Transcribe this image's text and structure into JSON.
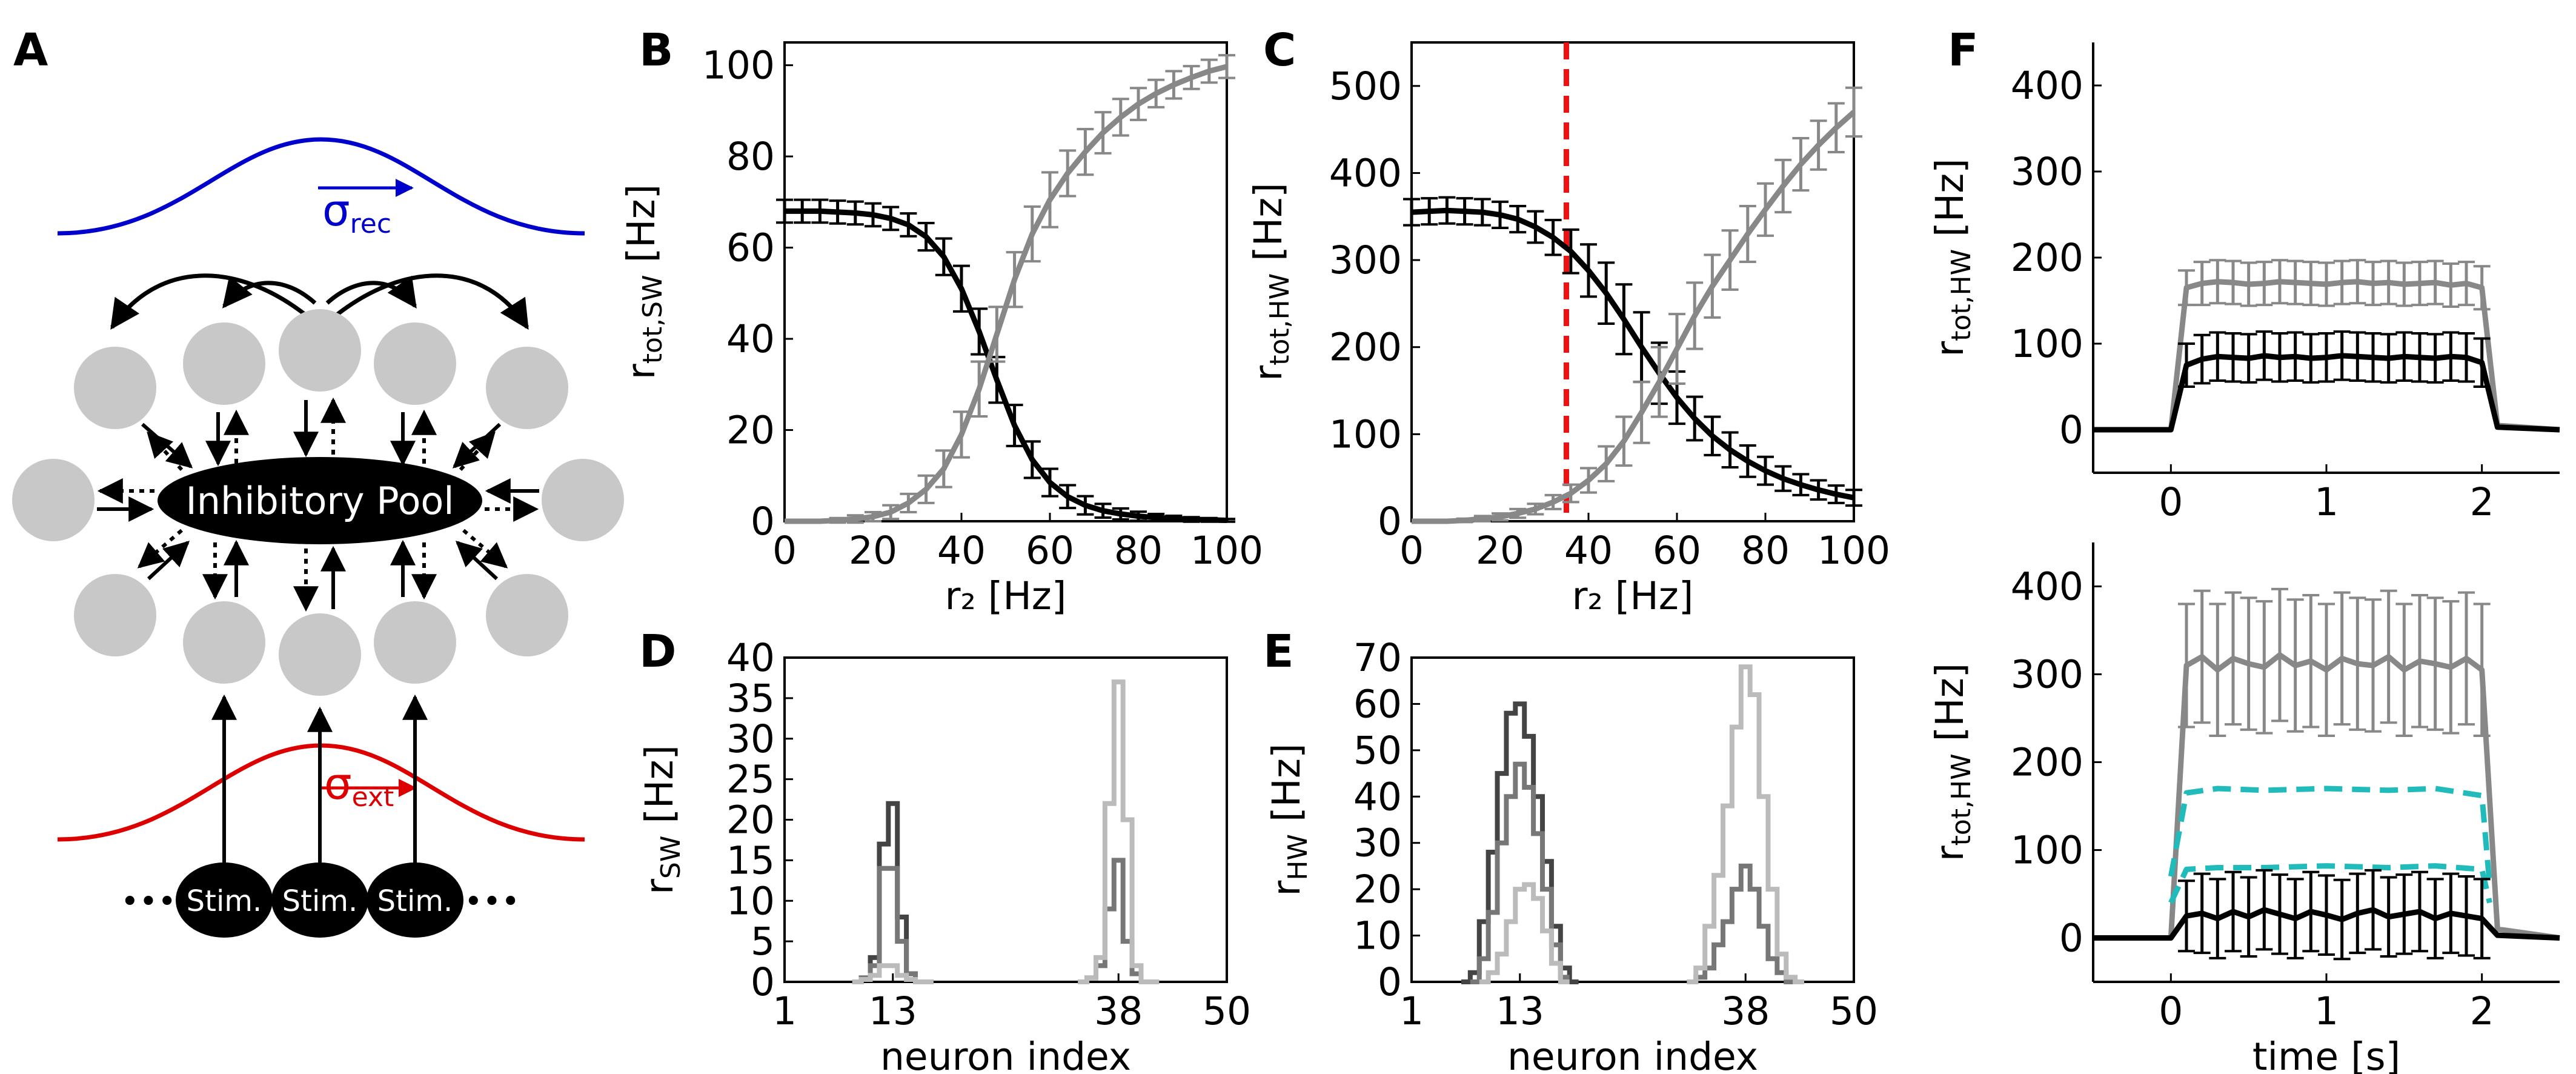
{
  "panel_labels": {
    "A": "A",
    "B": "B",
    "C": "C",
    "D": "D",
    "E": "E",
    "F": "F"
  },
  "colors": {
    "grey_curve": "#888888",
    "black_curve": "#000000",
    "red_dashed": "#ee1111",
    "cyan_dashed": "#22bbbb",
    "hist_dark": "#444444",
    "hist_mid": "#777777",
    "hist_light": "#bbbbbb",
    "recurrent_kernel": "#0000cc",
    "external_kernel": "#dd0000",
    "neuron_fill": "#c8c8c8"
  },
  "diagram": {
    "pool_label": "Inhibitory Pool",
    "stim_labels": [
      "Stim.",
      "Stim.",
      "Stim."
    ],
    "sigma_rec_base": "σ",
    "sigma_rec_sub": "rec",
    "sigma_ext_base": "σ",
    "sigma_ext_sub": "ext",
    "ellipsis_left": "•••",
    "ellipsis_right": "•••"
  },
  "chart_data": [
    {
      "id": "B",
      "type": "line",
      "xlabel": "r₂ [Hz]",
      "ylabel_base": "r",
      "ylabel_sub": "tot,SW",
      "ylabel_unit": " [Hz]",
      "xlim": [
        0,
        100
      ],
      "ylim": [
        0,
        105
      ],
      "xticks": [
        0,
        20,
        40,
        60,
        80,
        100
      ],
      "yticks": [
        0,
        20,
        40,
        60,
        80,
        100
      ],
      "series": [
        {
          "color": "black",
          "x": [
            0,
            4,
            8,
            12,
            16,
            20,
            24,
            28,
            32,
            36,
            40,
            44,
            48,
            52,
            56,
            60,
            64,
            68,
            72,
            76,
            80,
            84,
            88,
            92,
            96,
            100
          ],
          "y": [
            68,
            68,
            68,
            67.8,
            67.6,
            67.2,
            66.4,
            65,
            62.4,
            58,
            51,
            41.6,
            31,
            21,
            13.5,
            8.5,
            5.4,
            3.5,
            2.3,
            1.6,
            1.1,
            0.8,
            0.6,
            0.4,
            0.3,
            0.2
          ],
          "err": [
            2.5,
            2.5,
            2.5,
            2.5,
            2.5,
            2.5,
            2.5,
            2.5,
            3,
            4,
            5,
            5,
            5,
            4.5,
            4,
            3,
            2.5,
            2,
            1.5,
            1.2,
            1,
            0.8,
            0.6,
            0.5,
            0.4,
            0.3
          ]
        },
        {
          "color": "grey",
          "x": [
            0,
            4,
            8,
            12,
            16,
            20,
            24,
            28,
            32,
            36,
            40,
            44,
            48,
            52,
            56,
            60,
            64,
            68,
            72,
            76,
            80,
            84,
            88,
            92,
            96,
            100
          ],
          "y": [
            0,
            0,
            0,
            0.2,
            0.5,
            1,
            2,
            4,
            7,
            11.5,
            19,
            29,
            41,
            53,
            63,
            70.5,
            76.3,
            81,
            85.2,
            88.6,
            91.5,
            93.8,
            95.7,
            97.3,
            98.7,
            99.7
          ],
          "err": [
            0,
            0,
            0,
            0.5,
            0.8,
            1,
            1.5,
            2,
            3,
            4,
            5,
            6,
            6,
            6,
            6,
            6,
            5,
            5,
            4.5,
            4,
            3.5,
            3,
            3,
            2.5,
            2.5,
            2.5
          ]
        }
      ]
    },
    {
      "id": "C",
      "type": "line",
      "xlabel": "r₂ [Hz]",
      "ylabel_base": "r",
      "ylabel_sub": "tot,HW",
      "ylabel_unit": " [Hz]",
      "xlim": [
        0,
        100
      ],
      "ylim": [
        0,
        550
      ],
      "xticks": [
        0,
        20,
        40,
        60,
        80,
        100
      ],
      "yticks": [
        0,
        100,
        200,
        300,
        400,
        500
      ],
      "vline": 35,
      "series": [
        {
          "color": "black",
          "x": [
            0,
            4,
            8,
            12,
            16,
            20,
            24,
            28,
            32,
            36,
            40,
            44,
            48,
            52,
            56,
            60,
            64,
            68,
            72,
            76,
            80,
            84,
            88,
            92,
            96,
            100
          ],
          "y": [
            355,
            356,
            357,
            356,
            355,
            352,
            347,
            338,
            326,
            310,
            288,
            262,
            232,
            200,
            170,
            142,
            118,
            98,
            82,
            69,
            58,
            49,
            42,
            36,
            31,
            27
          ],
          "err": [
            15,
            15,
            15,
            15,
            15,
            15,
            15,
            18,
            20,
            25,
            30,
            35,
            40,
            40,
            35,
            30,
            25,
            22,
            20,
            18,
            16,
            14,
            12,
            11,
            10,
            9
          ]
        },
        {
          "color": "grey",
          "x": [
            0,
            4,
            8,
            12,
            16,
            20,
            24,
            28,
            32,
            36,
            40,
            44,
            48,
            52,
            56,
            60,
            64,
            68,
            72,
            76,
            80,
            84,
            88,
            92,
            96,
            100
          ],
          "y": [
            0,
            0,
            0,
            1,
            3,
            5,
            9,
            14,
            22,
            32,
            47,
            66,
            92,
            125,
            160,
            198,
            236,
            270,
            300,
            330,
            358,
            385,
            410,
            432,
            452,
            470
          ],
          "err": [
            0,
            0,
            0,
            2,
            3,
            4,
            5,
            6,
            8,
            10,
            14,
            20,
            28,
            35,
            40,
            40,
            38,
            36,
            34,
            32,
            30,
            30,
            30,
            28,
            28,
            28
          ]
        }
      ]
    },
    {
      "id": "D",
      "type": "line",
      "xlabel": "neuron index",
      "ylabel_base": "r",
      "ylabel_sub": "SW",
      "ylabel_unit": " [Hz]",
      "xlim": [
        1,
        50
      ],
      "ylim": [
        0,
        40
      ],
      "xticks": [
        1,
        13,
        38,
        50
      ],
      "yticks": [
        0,
        5,
        10,
        15,
        20,
        25,
        30,
        35,
        40
      ],
      "series": [
        {
          "color": "dark",
          "x": [
            9,
            10,
            11,
            12,
            13,
            14,
            15,
            16,
            17
          ],
          "y": [
            0,
            0.5,
            3,
            17,
            22,
            8,
            1,
            0,
            0
          ]
        },
        {
          "color": "mid",
          "x": [
            9,
            10,
            11,
            12,
            13,
            14,
            15,
            16,
            17
          ],
          "y": [
            0,
            0.5,
            2,
            14,
            14,
            5,
            1,
            0,
            0
          ],
          "x2": [
            34,
            35,
            36,
            37,
            38,
            39,
            40,
            41,
            42
          ],
          "y2": [
            0,
            0.5,
            2,
            9,
            15,
            5,
            1,
            0,
            0
          ]
        },
        {
          "color": "light",
          "x": [
            9,
            10,
            11,
            12,
            13,
            14,
            15,
            16,
            17
          ],
          "y": [
            0,
            0.3,
            0.8,
            2,
            2,
            0.8,
            0.3,
            0,
            0
          ],
          "x2": [
            34,
            35,
            36,
            37,
            38,
            39,
            40,
            41,
            42
          ],
          "y2": [
            0,
            0.5,
            3,
            22,
            37,
            20,
            2,
            0,
            0
          ]
        }
      ]
    },
    {
      "id": "E",
      "type": "line",
      "xlabel": "neuron index",
      "ylabel_base": "r",
      "ylabel_sub": "HW",
      "ylabel_unit": " [Hz]",
      "xlim": [
        1,
        50
      ],
      "ylim": [
        0,
        70
      ],
      "xticks": [
        1,
        13,
        38,
        50
      ],
      "yticks": [
        0,
        10,
        20,
        30,
        40,
        50,
        60,
        70
      ],
      "series": [
        {
          "color": "dark",
          "x": [
            7,
            8,
            9,
            10,
            11,
            12,
            13,
            14,
            15,
            16,
            17,
            18,
            19
          ],
          "y": [
            0,
            2,
            13,
            28,
            45,
            58,
            60,
            53,
            40,
            26,
            12,
            3,
            0
          ]
        },
        {
          "color": "mid",
          "x": [
            8,
            9,
            10,
            11,
            12,
            13,
            14,
            15,
            16,
            17,
            18
          ],
          "y": [
            0,
            5,
            15,
            30,
            40,
            47,
            42,
            32,
            20,
            8,
            1
          ],
          "x2": [
            32,
            33,
            34,
            35,
            36,
            37,
            38,
            39,
            40,
            41,
            42,
            43,
            44
          ],
          "y2": [
            0,
            1,
            3,
            8,
            13,
            20,
            25,
            20,
            12,
            5,
            2,
            0,
            0
          ]
        },
        {
          "color": "light",
          "x": [
            9,
            10,
            11,
            12,
            13,
            14,
            15,
            16,
            17,
            18
          ],
          "y": [
            0,
            2,
            6,
            13,
            20,
            21,
            18,
            11,
            4,
            0
          ],
          "x2": [
            32,
            33,
            34,
            35,
            36,
            37,
            38,
            39,
            40,
            41,
            42,
            43,
            44
          ],
          "y2": [
            0,
            3,
            12,
            23,
            38,
            55,
            68,
            62,
            40,
            20,
            6,
            1,
            0
          ]
        }
      ]
    },
    {
      "id": "F1",
      "type": "line",
      "xlabel": "",
      "ylabel_base": "r",
      "ylabel_sub": "tot,HW",
      "ylabel_unit": " [Hz]",
      "xlim": [
        -0.5,
        2.5
      ],
      "ylim": [
        -50,
        450
      ],
      "xticks": [
        0,
        1,
        2
      ],
      "yticks": [
        0,
        100,
        200,
        300,
        400
      ],
      "series": [
        {
          "color": "grey",
          "x": [
            -0.5,
            0,
            0.1,
            0.2,
            0.3,
            0.4,
            0.5,
            0.6,
            0.7,
            0.8,
            0.9,
            1.0,
            1.1,
            1.2,
            1.3,
            1.4,
            1.5,
            1.6,
            1.7,
            1.8,
            1.9,
            2.0,
            2.1,
            2.5
          ],
          "y": [
            0,
            0,
            165,
            170,
            172,
            171,
            169,
            170,
            172,
            171,
            170,
            169,
            171,
            172,
            170,
            171,
            169,
            170,
            171,
            168,
            170,
            165,
            5,
            0
          ],
          "err": [
            0,
            0,
            20,
            25,
            25,
            25,
            25,
            25,
            25,
            25,
            25,
            25,
            25,
            25,
            25,
            25,
            25,
            25,
            25,
            25,
            25,
            25,
            0,
            0
          ]
        },
        {
          "color": "black",
          "x": [
            -0.5,
            0,
            0.1,
            0.2,
            0.3,
            0.4,
            0.5,
            0.6,
            0.7,
            0.8,
            0.9,
            1.0,
            1.1,
            1.2,
            1.3,
            1.4,
            1.5,
            1.6,
            1.7,
            1.8,
            1.9,
            2.0,
            2.1,
            2.5
          ],
          "y": [
            0,
            0,
            75,
            82,
            85,
            84,
            83,
            86,
            84,
            85,
            83,
            84,
            86,
            85,
            84,
            83,
            85,
            84,
            83,
            85,
            84,
            78,
            3,
            0
          ],
          "err": [
            0,
            0,
            25,
            28,
            28,
            28,
            28,
            28,
            28,
            28,
            28,
            28,
            28,
            28,
            28,
            28,
            28,
            28,
            28,
            28,
            28,
            28,
            0,
            0
          ]
        }
      ]
    },
    {
      "id": "F2",
      "type": "line",
      "xlabel": "time [s]",
      "ylabel_base": "r",
      "ylabel_sub": "tot,HW",
      "ylabel_unit": " [Hz]",
      "xlim": [
        -0.5,
        2.5
      ],
      "ylim": [
        -50,
        450
      ],
      "xticks": [
        0,
        1,
        2
      ],
      "yticks": [
        0,
        100,
        200,
        300,
        400
      ],
      "series": [
        {
          "color": "grey",
          "x": [
            -0.5,
            0,
            0.1,
            0.2,
            0.3,
            0.4,
            0.5,
            0.6,
            0.7,
            0.8,
            0.9,
            1.0,
            1.1,
            1.2,
            1.3,
            1.4,
            1.5,
            1.6,
            1.7,
            1.8,
            1.9,
            2.0,
            2.1,
            2.5
          ],
          "y": [
            0,
            0,
            310,
            320,
            305,
            318,
            312,
            308,
            322,
            310,
            315,
            305,
            318,
            312,
            310,
            320,
            305,
            315,
            312,
            308,
            318,
            305,
            10,
            0
          ],
          "err": [
            0,
            0,
            70,
            75,
            75,
            75,
            75,
            75,
            75,
            75,
            75,
            75,
            75,
            75,
            75,
            75,
            75,
            75,
            75,
            75,
            75,
            75,
            0,
            0
          ]
        },
        {
          "color": "cyan",
          "dashed": true,
          "x": [
            0,
            0.1,
            0.3,
            0.6,
            1.0,
            1.4,
            1.7,
            2.0,
            2.05
          ],
          "y": [
            70,
            165,
            170,
            168,
            170,
            168,
            170,
            162,
            60
          ]
        },
        {
          "color": "cyan",
          "dashed": true,
          "x": [
            0,
            0.1,
            0.3,
            0.6,
            1.0,
            1.4,
            1.7,
            2.0,
            2.05
          ],
          "y": [
            40,
            78,
            80,
            80,
            82,
            80,
            82,
            78,
            40
          ]
        },
        {
          "color": "black",
          "x": [
            -0.5,
            0,
            0.1,
            0.2,
            0.3,
            0.4,
            0.5,
            0.6,
            0.7,
            0.8,
            0.9,
            1.0,
            1.1,
            1.2,
            1.3,
            1.4,
            1.5,
            1.6,
            1.7,
            1.8,
            1.9,
            2.0,
            2.1,
            2.5
          ],
          "y": [
            0,
            0,
            25,
            28,
            22,
            30,
            24,
            32,
            27,
            22,
            30,
            26,
            21,
            28,
            32,
            24,
            27,
            30,
            22,
            28,
            25,
            22,
            3,
            0
          ],
          "err": [
            0,
            0,
            40,
            45,
            45,
            45,
            45,
            45,
            45,
            45,
            45,
            45,
            45,
            45,
            45,
            45,
            45,
            45,
            45,
            45,
            45,
            45,
            0,
            0
          ]
        }
      ]
    }
  ]
}
